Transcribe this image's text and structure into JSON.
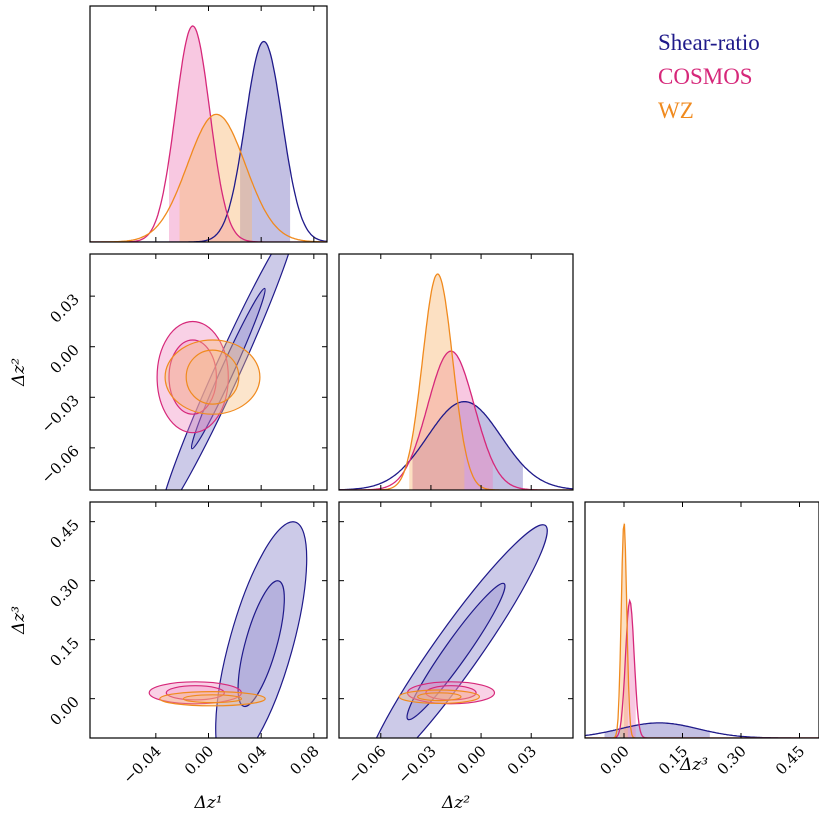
{
  "chart_data": {
    "type": "corner",
    "legend_position": "top-right",
    "series": [
      {
        "name": "Shear-ratio",
        "color": "#1f1a8a",
        "fill": "#7a74c2"
      },
      {
        "name": "COSMOS",
        "color": "#d6287a",
        "fill": "#ef86bd"
      },
      {
        "name": "WZ",
        "color": "#f08a1e",
        "fill": "#f8bb78"
      }
    ],
    "parameters": [
      {
        "key": "z1",
        "label": "Δz¹",
        "range": [
          -0.09,
          0.09
        ],
        "ticks": [
          -0.04,
          0.0,
          0.04,
          0.08
        ],
        "tick_labels": [
          "−0.04",
          "0.00",
          "0.04",
          "0.08"
        ]
      },
      {
        "key": "z2",
        "label": "Δz²",
        "range": [
          -0.085,
          0.055
        ],
        "ticks": [
          -0.06,
          -0.03,
          0.0,
          0.03
        ],
        "tick_labels": [
          "−0.06",
          "−0.03",
          "0.00",
          "0.03"
        ]
      },
      {
        "key": "z3",
        "label": "Δz³",
        "range": [
          -0.1,
          0.5
        ],
        "ticks": [
          0.0,
          0.15,
          0.3,
          0.45
        ],
        "tick_labels": [
          "0.00",
          "0.15",
          "0.30",
          "0.45"
        ]
      }
    ],
    "marginals": {
      "z1": [
        {
          "series": "Shear-ratio",
          "mean": 0.042,
          "sigma": 0.014,
          "interval": [
            0.024,
            0.062
          ]
        },
        {
          "series": "COSMOS",
          "mean": -0.012,
          "sigma": 0.013,
          "interval": [
            -0.03,
            0.024
          ]
        },
        {
          "series": "WZ",
          "mean": 0.006,
          "sigma": 0.022,
          "interval": [
            -0.022,
            0.033
          ]
        }
      ],
      "z2": [
        {
          "series": "Shear-ratio",
          "mean": -0.01,
          "sigma": 0.022,
          "interval": [
            -0.041,
            0.025
          ]
        },
        {
          "series": "COSMOS",
          "mean": -0.018,
          "sigma": 0.014,
          "interval": [
            -0.041,
            0.007
          ]
        },
        {
          "series": "WZ",
          "mean": -0.026,
          "sigma": 0.009,
          "interval": [
            -0.043,
            -0.01
          ]
        }
      ],
      "z3": [
        {
          "series": "Shear-ratio",
          "mean": 0.09,
          "sigma": 0.1,
          "interval": [
            -0.05,
            0.22
          ]
        },
        {
          "series": "COSMOS",
          "mean": 0.015,
          "sigma": 0.011,
          "interval": [
            0.0,
            0.03
          ]
        },
        {
          "series": "WZ",
          "mean": 0.0,
          "sigma": 0.007,
          "interval": [
            -0.01,
            0.01
          ]
        }
      ]
    },
    "contours_2d": [
      {
        "x": "z1",
        "y": "z2",
        "series": "Shear-ratio",
        "center": [
          0.015,
          -0.013
        ],
        "slope": 1.72,
        "sd_perp": 0.006,
        "len68": 0.11,
        "len95": 0.2
      },
      {
        "x": "z1",
        "y": "z2",
        "series": "COSMOS",
        "center": [
          -0.012,
          -0.018
        ],
        "rx68": 0.018,
        "ry68": 0.022,
        "rx95": 0.027,
        "ry95": 0.033
      },
      {
        "x": "z1",
        "y": "z2",
        "series": "WZ",
        "center": [
          0.003,
          -0.018
        ],
        "rx68": 0.02,
        "ry68": 0.016,
        "rx95": 0.036,
        "ry95": 0.022
      },
      {
        "x": "z1",
        "y": "z3",
        "series": "Shear-ratio",
        "center": [
          0.04,
          0.14
        ],
        "slope": 12.0,
        "sd_perp": 0.05,
        "len68": 0.32,
        "len95": 0.62
      },
      {
        "x": "z1",
        "y": "z3",
        "series": "COSMOS",
        "center": [
          -0.01,
          0.015
        ],
        "rx68": 0.022,
        "ry68": 0.018,
        "rx95": 0.035,
        "ry95": 0.028
      },
      {
        "x": "z1",
        "y": "z3",
        "series": "WZ",
        "center": [
          0.003,
          0.0
        ],
        "rx68": 0.022,
        "ry68": 0.01,
        "rx95": 0.04,
        "ry95": 0.018
      },
      {
        "x": "z2",
        "y": "z3",
        "series": "Shear-ratio",
        "center": [
          -0.015,
          0.12
        ],
        "slope": 6.0,
        "sd_perp": 0.036,
        "len68": 0.35,
        "len95": 0.65
      },
      {
        "x": "z2",
        "y": "z3",
        "series": "COSMOS",
        "center": [
          -0.018,
          0.015
        ],
        "rx68": 0.015,
        "ry68": 0.018,
        "rx95": 0.026,
        "ry95": 0.028
      },
      {
        "x": "z2",
        "y": "z3",
        "series": "WZ",
        "center": [
          -0.025,
          0.005
        ],
        "rx68": 0.013,
        "ry68": 0.01,
        "rx95": 0.024,
        "ry95": 0.017
      }
    ]
  }
}
